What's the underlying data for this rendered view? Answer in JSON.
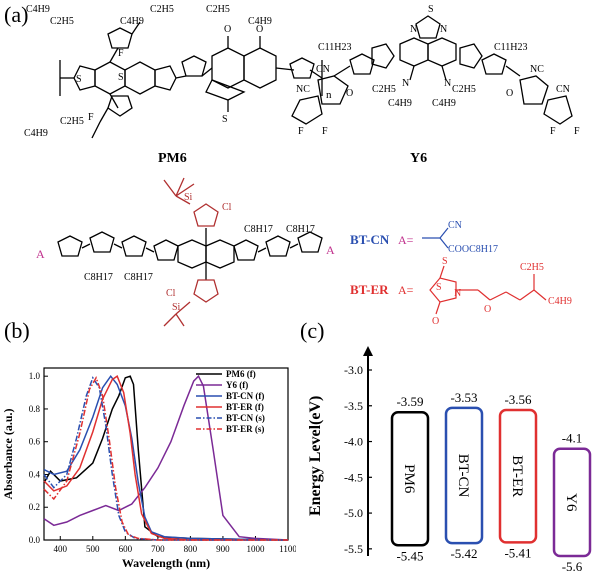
{
  "panels": {
    "a": "(a)",
    "b": "(b)",
    "c": "(c)"
  },
  "structures": {
    "pm6_name": "PM6",
    "y6_name": "Y6",
    "bt_cn_label": "BT-CN",
    "bt_er_label": "BT-ER",
    "a_symbol": "A=",
    "a_end": "A",
    "subscript_n": "n",
    "labels": {
      "c4h9": "C4H9",
      "c2h5": "C2H5",
      "c11h23": "C11H23",
      "c8h17": "C8H17",
      "f": "F",
      "s": "S",
      "o": "O",
      "n": "N",
      "cn": "CN",
      "nc": "NC",
      "cl": "Cl",
      "si": "Si",
      "cooc8h17": "COOC8H17"
    }
  },
  "colors": {
    "pm6": "#000000",
    "y6": "#7b2a96",
    "bt_cn": "#2a4fb0",
    "bt_er": "#e03030",
    "a_magenta": "#c0308c",
    "sidechain_red": "#b03030"
  },
  "chart_data": [
    {
      "type": "line",
      "xlabel": "Wavelength (nm)",
      "ylabel": "Absorbance (a.u.)",
      "xlim": [
        350,
        1100
      ],
      "ylim": [
        0,
        1.05
      ],
      "xticks": [
        400,
        500,
        600,
        700,
        800,
        900,
        1000,
        1100
      ],
      "yticks": [
        0.0,
        0.2,
        0.4,
        0.6,
        0.8,
        1.0
      ],
      "legend_position": "top-right",
      "series": [
        {
          "name": "PM6 (f)",
          "color": "#000000",
          "style": "solid",
          "x": [
            350,
            370,
            400,
            450,
            500,
            530,
            560,
            580,
            600,
            615,
            625,
            640,
            660,
            700,
            800,
            1100
          ],
          "y": [
            0.35,
            0.42,
            0.36,
            0.38,
            0.47,
            0.62,
            0.8,
            0.88,
            0.99,
            1.0,
            0.95,
            0.55,
            0.08,
            0.02,
            0.01,
            0.0
          ]
        },
        {
          "name": "Y6 (f)",
          "color": "#7b2a96",
          "style": "solid",
          "x": [
            350,
            380,
            420,
            460,
            500,
            540,
            580,
            620,
            660,
            700,
            740,
            780,
            810,
            825,
            840,
            870,
            900,
            950,
            1000,
            1100
          ],
          "y": [
            0.13,
            0.09,
            0.11,
            0.15,
            0.18,
            0.21,
            0.18,
            0.22,
            0.32,
            0.44,
            0.6,
            0.82,
            0.97,
            1.0,
            0.94,
            0.55,
            0.15,
            0.02,
            0.01,
            0.0
          ]
        },
        {
          "name": "BT-CN (f)",
          "color": "#2a4fb0",
          "style": "solid",
          "x": [
            350,
            380,
            420,
            460,
            500,
            530,
            555,
            575,
            600,
            620,
            640,
            660,
            680,
            720,
            800,
            1100
          ],
          "y": [
            0.43,
            0.4,
            0.42,
            0.55,
            0.75,
            0.93,
            1.0,
            0.95,
            0.82,
            0.62,
            0.35,
            0.14,
            0.05,
            0.02,
            0.01,
            0.0
          ]
        },
        {
          "name": "BT-ER (f)",
          "color": "#e03030",
          "style": "solid",
          "x": [
            350,
            380,
            420,
            460,
            500,
            530,
            560,
            575,
            595,
            615,
            630,
            650,
            680,
            720,
            800,
            1100
          ],
          "y": [
            0.36,
            0.3,
            0.33,
            0.44,
            0.66,
            0.86,
            0.98,
            1.0,
            0.9,
            0.65,
            0.4,
            0.16,
            0.04,
            0.01,
            0.0,
            0.0
          ]
        },
        {
          "name": "BT-CN (s)",
          "color": "#2a4fb0",
          "style": "dashdot",
          "x": [
            350,
            380,
            420,
            450,
            480,
            500,
            520,
            540,
            560,
            580,
            600,
            630,
            700,
            1100
          ],
          "y": [
            0.4,
            0.32,
            0.4,
            0.62,
            0.88,
            0.99,
            0.93,
            0.7,
            0.4,
            0.15,
            0.05,
            0.01,
            0.0,
            0.0
          ]
        },
        {
          "name": "BT-ER (s)",
          "color": "#e03030",
          "style": "dashdot",
          "x": [
            350,
            380,
            420,
            460,
            490,
            510,
            530,
            550,
            570,
            590,
            610,
            640,
            700,
            1100
          ],
          "y": [
            0.31,
            0.25,
            0.36,
            0.65,
            0.92,
            0.99,
            0.88,
            0.62,
            0.32,
            0.11,
            0.03,
            0.01,
            0.0,
            0.0
          ]
        }
      ]
    },
    {
      "type": "bar",
      "ylabel": "Energy Level(eV)",
      "ylim": [
        -5.6,
        -3.0
      ],
      "yticks": [
        -3.0,
        -3.5,
        -4.0,
        -4.5,
        -5.0,
        -5.5
      ],
      "categories": [
        "PM6",
        "BT-CN",
        "BT-ER",
        "Y6"
      ],
      "homo": [
        -5.45,
        -5.42,
        -5.41,
        -5.6
      ],
      "lumo": [
        -3.59,
        -3.53,
        -3.56,
        -4.1
      ],
      "homo_labels": [
        "-5.45",
        "-5.42",
        "-5.41",
        "-5.6"
      ],
      "lumo_labels": [
        "-3.59",
        "-3.53",
        "-3.56",
        "-4.1"
      ],
      "colors": [
        "#000000",
        "#2a4fb0",
        "#e03030",
        "#7b2a96"
      ]
    }
  ]
}
